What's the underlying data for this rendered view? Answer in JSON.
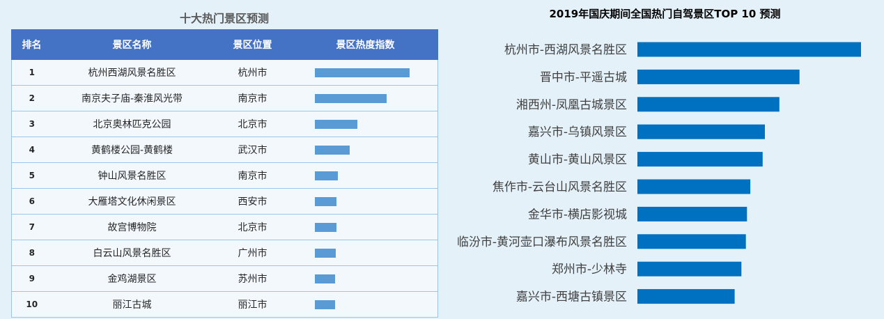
{
  "table": {
    "title": "十大热门景区预测",
    "headers": [
      "排名",
      "景区名称",
      "景区位置",
      "景区热度指数"
    ],
    "rows": [
      {
        "rank": "1",
        "name": "杭州西湖风景名胜区",
        "location": "杭州市",
        "heat": 1.0
      },
      {
        "rank": "2",
        "name": "南京夫子庙-秦淮风光带",
        "location": "南京市",
        "heat": 0.76
      },
      {
        "rank": "3",
        "name": "北京奥林匹克公园",
        "location": "北京市",
        "heat": 0.45
      },
      {
        "rank": "4",
        "name": "黄鹤楼公园-黄鹤楼",
        "location": "武汉市",
        "heat": 0.37
      },
      {
        "rank": "5",
        "name": "钟山风景名胜区",
        "location": "南京市",
        "heat": 0.24
      },
      {
        "rank": "6",
        "name": "大雁塔文化休闲景区",
        "location": "西安市",
        "heat": 0.23
      },
      {
        "rank": "7",
        "name": "故宫博物院",
        "location": "北京市",
        "heat": 0.23
      },
      {
        "rank": "8",
        "name": "白云山风景名胜区",
        "location": "广州市",
        "heat": 0.22
      },
      {
        "rank": "9",
        "name": "金鸡湖景区",
        "location": "苏州市",
        "heat": 0.21
      },
      {
        "rank": "10",
        "name": "丽江古城",
        "location": "丽江市",
        "heat": 0.21
      }
    ]
  },
  "chart_data": {
    "type": "bar",
    "orientation": "horizontal",
    "title": "2019年国庆期间全国热门自驾景区TOP 10 预测",
    "categories": [
      "杭州市-西湖风景名胜区",
      "晋中市-平遥古城",
      "湘西州-凤凰古城景区",
      "嘉兴市-乌镇风景区",
      "黄山市-黄山风景区",
      "焦作市-云台山风景名胜区",
      "金华市-横店影视城",
      "临汾市-黄河壶口瀑布风景名胜区",
      "郑州市-少林寺",
      "嘉兴市-西塘古镇景区"
    ],
    "values": [
      100,
      72.5,
      63.5,
      57,
      56,
      50.5,
      49,
      48.5,
      46.5,
      43.5
    ],
    "xlim": [
      0,
      100
    ],
    "grid": false,
    "axis_labels_visible": false,
    "bar_color": "#0070c0"
  }
}
